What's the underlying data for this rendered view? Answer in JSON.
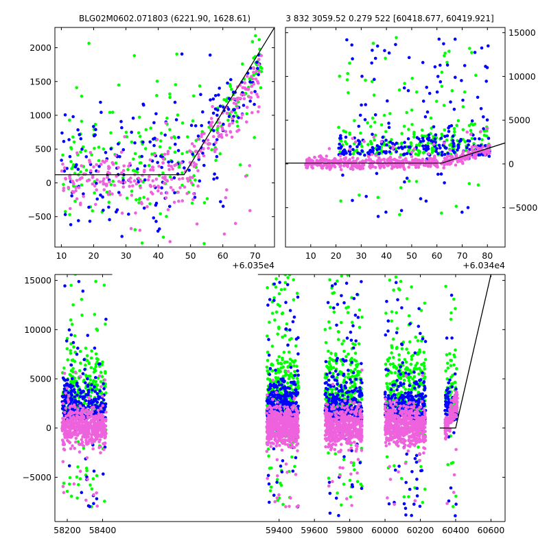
{
  "figure": {
    "title_left": "BLG02M0602.071803 (6221.90, 1628.61)",
    "title_right": "3 832 3059.52 0.279 522 [60418.677, 60419.921]"
  },
  "colors": {
    "green": "#00ff00",
    "blue": "#0000ff",
    "pink": "#ee62dd",
    "line": "#000000"
  },
  "chart_data": [
    {
      "id": "top-left",
      "type": "scatter",
      "title": "BLG02M0602.071803 (6221.90, 1628.61)",
      "x_offset_label": "+6.035e4",
      "xlim": [
        8,
        76
      ],
      "ylim": [
        -950,
        2300
      ],
      "xticks": [
        10,
        20,
        30,
        40,
        50,
        60,
        70
      ],
      "yticks": [
        -500,
        0,
        500,
        1000,
        1500,
        2000
      ],
      "ytick_labels": [
        "−500",
        "0",
        "500",
        "1000",
        "1500",
        "2000"
      ],
      "model_line": [
        [
          8,
          120
        ],
        [
          48,
          120
        ],
        [
          76,
          2300
        ]
      ],
      "series": [
        {
          "color_key": "green",
          "n": 230,
          "seed": 11
        },
        {
          "color_key": "blue",
          "n": 200,
          "seed": 12
        },
        {
          "color_key": "pink",
          "n": 300,
          "seed": 13
        }
      ]
    },
    {
      "id": "top-right",
      "type": "scatter",
      "title": "3 832 3059.52 0.279 522 [60418.677, 60419.921]",
      "x_offset_label": "+6.034e4",
      "xlim": [
        0,
        87
      ],
      "ylim": [
        -9500,
        15600
      ],
      "xticks": [
        10,
        20,
        30,
        40,
        50,
        60,
        70,
        80
      ],
      "yticks": [
        -5000,
        0,
        5000,
        10000,
        15000
      ],
      "ytick_labels": [
        "−5000",
        "0",
        "5000",
        "10000",
        "15000"
      ],
      "ytick_side": "right",
      "model_line": [
        [
          0,
          100
        ],
        [
          62,
          100
        ],
        [
          87,
          2400
        ]
      ],
      "series": [
        {
          "color_key": "green",
          "n": 230,
          "seed": 21
        },
        {
          "color_key": "blue",
          "n": 260,
          "seed": 22
        },
        {
          "color_key": "pink",
          "n": 520,
          "seed": 23
        }
      ]
    },
    {
      "id": "bottom",
      "type": "scatter",
      "xlim": [
        58130,
        60680
      ],
      "ylim": [
        -9500,
        15600
      ],
      "xticks": [
        58200,
        58400,
        59400,
        59600,
        59800,
        60000,
        60200,
        60400,
        60600
      ],
      "yticks": [
        -5000,
        0,
        5000,
        10000,
        15000
      ],
      "ytick_labels": [
        "−5000",
        "0",
        "5000",
        "10000",
        "15000"
      ],
      "model_line": [
        [
          60310,
          0
        ],
        [
          60400,
          0
        ],
        [
          60600,
          15600
        ]
      ],
      "seasons": [
        {
          "x0": 58170,
          "x1": 58420,
          "n": 900
        },
        {
          "x0": 59330,
          "x1": 59510,
          "n": 1000
        },
        {
          "x0": 59660,
          "x1": 59870,
          "n": 950
        },
        {
          "x0": 60000,
          "x1": 60230,
          "n": 1000
        },
        {
          "x0": 60340,
          "x1": 60410,
          "n": 260
        }
      ]
    }
  ]
}
